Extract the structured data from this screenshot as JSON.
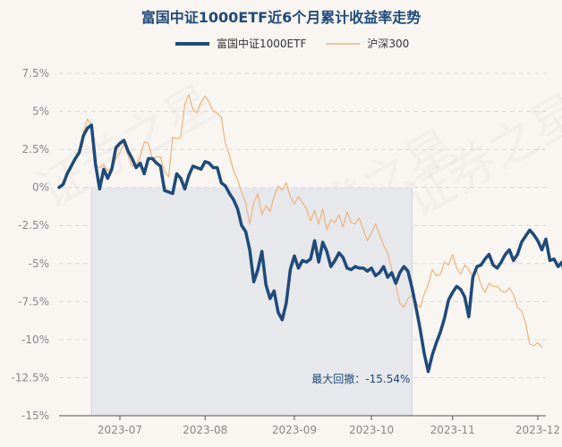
{
  "chart_data": {
    "type": "line",
    "title": "富国中证1000ETF近6个月累计收益率走势",
    "ylim": [
      -15,
      8.5
    ],
    "yticks": [
      7.5,
      5,
      2.5,
      0,
      -2.5,
      -5,
      -7.5,
      -10,
      -12.5,
      -15
    ],
    "ytick_labels": [
      "7.5%",
      "5%",
      "2.5%",
      "0%",
      "-2.5%",
      "-5%",
      "-7.5%",
      "-10%",
      "-12.5%",
      "-15%"
    ],
    "xticks": [
      {
        "x": 15,
        "label": "2023-07"
      },
      {
        "x": 36,
        "label": "2023-08"
      },
      {
        "x": 58,
        "label": "2023-09"
      },
      {
        "x": 77,
        "label": "2023-10"
      },
      {
        "x": 97,
        "label": "2023-11"
      },
      {
        "x": 118,
        "label": "2023-12"
      }
    ],
    "xlim": [
      0,
      120
    ],
    "grid": true,
    "legend_position": "top-center",
    "max_drawdown": {
      "label": "最大回撤：-15.54%",
      "x_start": 8,
      "x_end": 87
    },
    "series": [
      {
        "name": "富国中证1000ETF",
        "color": "#1f4a7a",
        "values": [
          0,
          0.2,
          0.9,
          1.4,
          1.9,
          2.3,
          3.4,
          3.9,
          4.1,
          1.5,
          -0.1,
          1.2,
          0.6,
          1.2,
          2.6,
          2.9,
          3.1,
          2.4,
          1.9,
          1.3,
          1.6,
          0.9,
          1.9,
          1.9,
          1.6,
          1.4,
          -0.2,
          -0.3,
          -0.4,
          0.9,
          0.6,
          -0.1,
          0.8,
          1.4,
          1.3,
          1.2,
          1.7,
          1.6,
          1.3,
          1.3,
          0.3,
          0.1,
          -0.4,
          -0.8,
          -1.4,
          -2.5,
          -2.9,
          -4.1,
          -6.2,
          -5.4,
          -4.2,
          -6.4,
          -7.3,
          -6.8,
          -8.2,
          -8.7,
          -7.6,
          -5.4,
          -4.5,
          -5.3,
          -4.8,
          -4.9,
          -4.7,
          -3.5,
          -4.9,
          -3.6,
          -4.2,
          -5.2,
          -4.8,
          -4.3,
          -4.6,
          -5.3,
          -5.4,
          -5.2,
          -5.3,
          -5.3,
          -5.5,
          -5.3,
          -5.8,
          -5.6,
          -5.2,
          -5.9,
          -5.6,
          -6.3,
          -5.6,
          -5.2,
          -5.5,
          -6.6,
          -7.9,
          -9.3,
          -10.9,
          -12.1,
          -11.0,
          -10.2,
          -9.5,
          -8.6,
          -7.4,
          -6.9,
          -6.5,
          -6.7,
          -7.2,
          -8.5,
          -5.9,
          -5.2,
          -5.1,
          -4.7,
          -4.4,
          -5.1,
          -5.3,
          -4.9,
          -4.4,
          -4.1,
          -4.8,
          -4.4,
          -3.6,
          -3.2,
          -2.8,
          -3.1,
          -3.5,
          -4.1,
          -3.4,
          -4.8,
          -4.7,
          -5.2,
          -4.9,
          -6.3
        ]
      },
      {
        "name": "沪深300",
        "color": "#f0b27a",
        "values": [
          0,
          0.3,
          0.8,
          1.2,
          1.8,
          2.6,
          3.6,
          4.5,
          4.1,
          1.4,
          1.3,
          1.5,
          1.1,
          1.2,
          1.9,
          2.3,
          2.9,
          2.1,
          1.4,
          1.5,
          2.0,
          3.0,
          2.9,
          1.9,
          2.0,
          2.0,
          1.0,
          0.7,
          3.3,
          3.2,
          3.3,
          5.5,
          6.1,
          5.1,
          4.9,
          5.6,
          6.0,
          5.6,
          5.0,
          4.9,
          4.6,
          2.9,
          2.1,
          1.1,
          0.5,
          -0.3,
          -1.0,
          -2.4,
          -1.0,
          -0.4,
          -1.8,
          -1.2,
          -1.6,
          -0.6,
          0.1,
          -0.2,
          0.3,
          -0.6,
          -1.1,
          -0.6,
          -1.0,
          -1.4,
          -2.2,
          -1.5,
          -2.4,
          -1.4,
          -2.8,
          -2.1,
          -2.3,
          -1.8,
          -2.6,
          -1.6,
          -2.3,
          -2.4,
          -2.0,
          -2.8,
          -3.5,
          -3.0,
          -2.4,
          -3.1,
          -3.8,
          -4.3,
          -5.4,
          -6.4,
          -7.6,
          -7.9,
          -7.3,
          -7.1,
          -7.6,
          -7.9,
          -7.0,
          -6.4,
          -5.4,
          -5.8,
          -5.7,
          -4.9,
          -5.1,
          -4.4,
          -5.3,
          -5.7,
          -5.1,
          -5.4,
          -5.9,
          -5.5,
          -6.4,
          -6.9,
          -6.3,
          -6.5,
          -6.5,
          -6.8,
          -6.9,
          -6.6,
          -7.0,
          -7.9,
          -8.1,
          -8.9,
          -10.3,
          -10.4,
          -10.2,
          -10.5
        ]
      }
    ]
  }
}
